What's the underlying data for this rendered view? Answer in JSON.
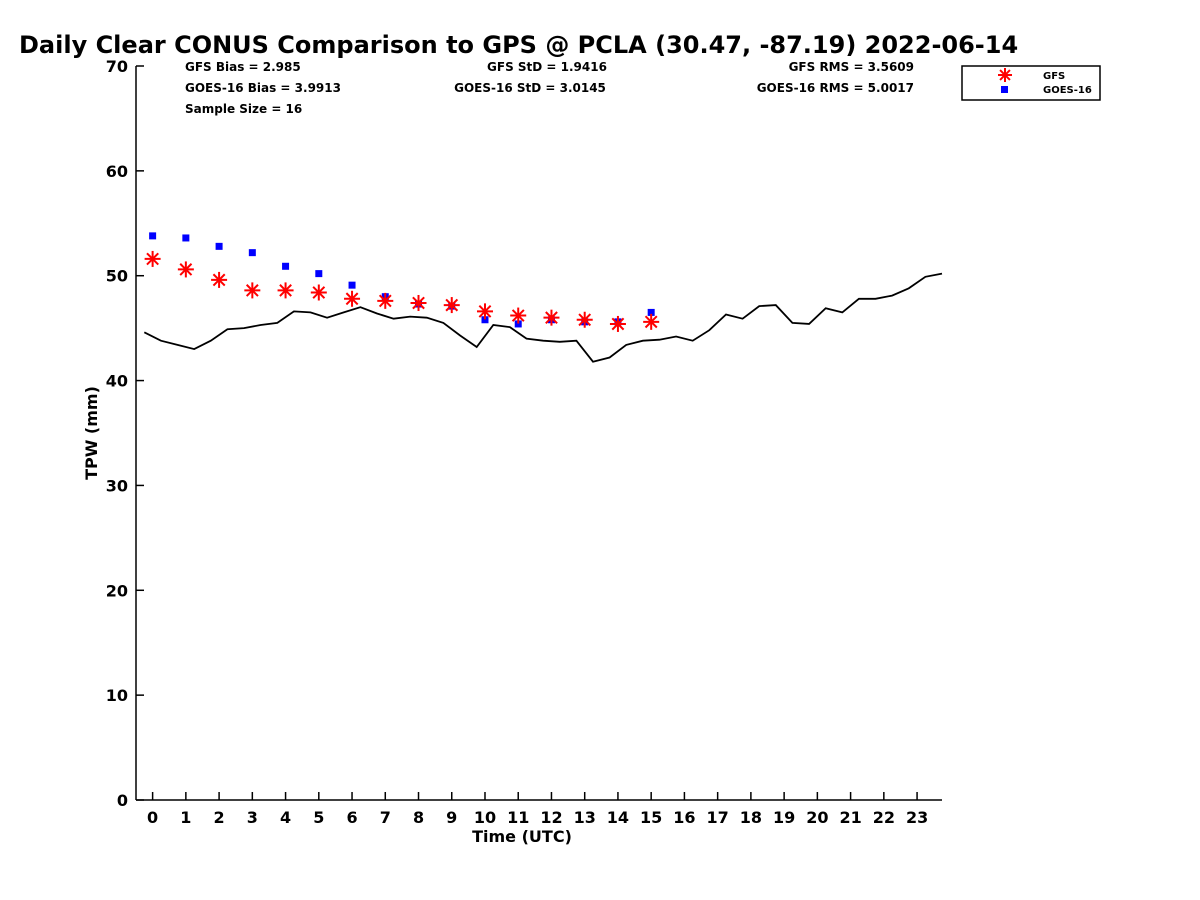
{
  "chart_data": {
    "type": "scatter",
    "title": "Daily Clear CONUS Comparison to GPS @ PCLA (30.47, -87.19) 2022-06-14",
    "xlabel": "Time (UTC)",
    "ylabel": "TPW (mm)",
    "xlim": [
      -0.5,
      23.75
    ],
    "ylim": [
      0,
      70
    ],
    "x_ticks": [
      0,
      1,
      2,
      3,
      4,
      5,
      6,
      7,
      8,
      9,
      10,
      11,
      12,
      13,
      14,
      15,
      16,
      17,
      18,
      19,
      20,
      21,
      22,
      23
    ],
    "y_ticks": [
      0,
      10,
      20,
      30,
      40,
      50,
      60,
      70
    ],
    "grid": false,
    "legend_position": "top-right",
    "series": [
      {
        "name": "GFS",
        "marker": "asterisk",
        "color": "#ff0000",
        "x": [
          0,
          1,
          2,
          3,
          4,
          5,
          6,
          7,
          8,
          9,
          10,
          11,
          12,
          13,
          14,
          15
        ],
        "y": [
          51.6,
          50.6,
          49.6,
          48.6,
          48.6,
          48.4,
          47.8,
          47.6,
          47.4,
          47.2,
          46.6,
          46.2,
          46.0,
          45.8,
          45.4,
          45.6
        ]
      },
      {
        "name": "GOES-16",
        "marker": "square",
        "color": "#0000ff",
        "x": [
          0,
          1,
          2,
          3,
          4,
          5,
          6,
          7,
          8,
          9,
          10,
          11,
          12,
          13,
          14,
          15
        ],
        "y": [
          53.8,
          53.6,
          52.8,
          52.2,
          50.9,
          50.2,
          49.1,
          48.0,
          47.3,
          47.1,
          45.8,
          45.4,
          45.8,
          45.6,
          45.6,
          46.5
        ]
      },
      {
        "marker": "line",
        "color": "#000000",
        "x": [
          -0.25,
          0.25,
          0.75,
          1.25,
          1.75,
          2.25,
          2.75,
          3.25,
          3.75,
          4.25,
          4.75,
          5.25,
          5.75,
          6.25,
          6.75,
          7.25,
          7.75,
          8.25,
          8.75,
          9.25,
          9.75,
          10.25,
          10.75,
          11.25,
          11.75,
          12.25,
          12.75,
          13.25,
          13.75,
          14.25,
          14.75,
          15.25,
          15.75,
          16.25,
          16.75,
          17.25,
          17.75,
          18.25,
          18.75,
          19.25,
          19.75,
          20.25,
          20.75,
          21.25,
          21.75,
          22.25,
          22.75,
          23.25,
          23.75
        ],
        "y": [
          44.6,
          43.8,
          43.4,
          43.0,
          43.8,
          44.9,
          45.0,
          45.3,
          45.5,
          46.6,
          46.5,
          46.0,
          46.5,
          47.0,
          46.4,
          45.9,
          46.1,
          46.0,
          45.5,
          44.3,
          43.2,
          45.3,
          45.1,
          44.0,
          43.8,
          43.7,
          43.8,
          41.8,
          42.2,
          43.4,
          43.8,
          43.9,
          44.2,
          43.8,
          44.8,
          46.3,
          45.9,
          47.1,
          47.2,
          45.5,
          45.4,
          46.9,
          46.5,
          47.8,
          47.8,
          48.1,
          48.8,
          49.9,
          50.2
        ]
      }
    ],
    "stats": {
      "gfs_bias": "GFS Bias = 2.985",
      "goes_bias": "GOES-16 Bias = 3.9913",
      "sample_size": "Sample Size = 16",
      "gfs_std": "GFS StD = 1.9416",
      "goes_std": "GOES-16 StD = 3.0145",
      "gfs_rms": "GFS RMS = 3.5609",
      "goes_rms": "GOES-16 RMS = 5.0017"
    }
  }
}
